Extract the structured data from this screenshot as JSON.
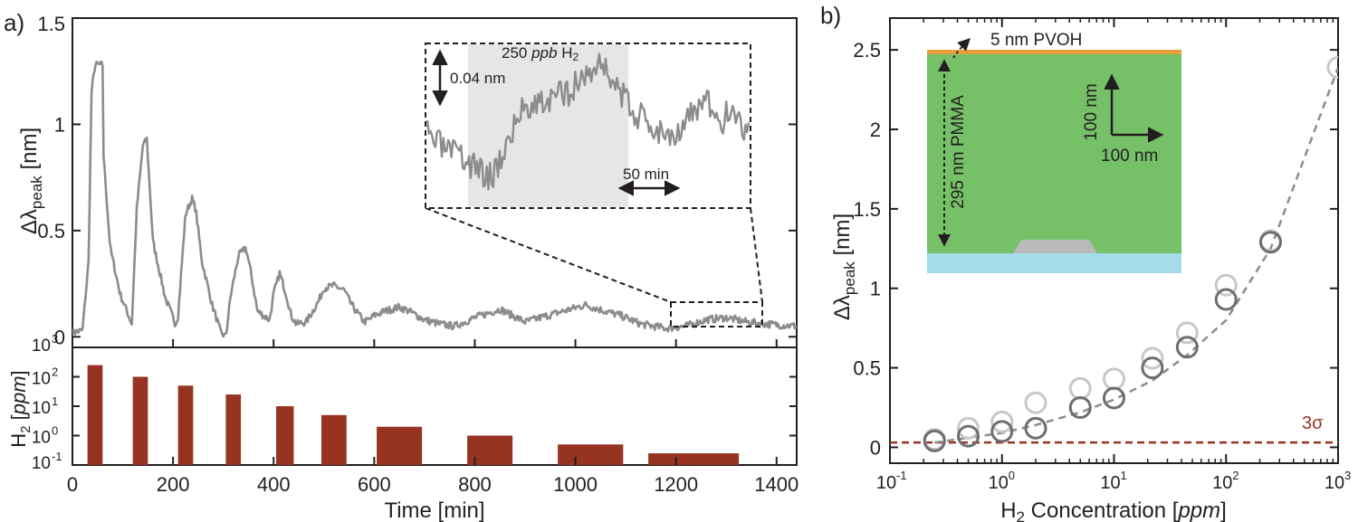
{
  "panel_a": {
    "label": "a)",
    "xlabel": "Time [min]",
    "ylabel_top": "Δλ",
    "ylabel_top_sub": "peak",
    "ylabel_top_unit": " [nm]",
    "ylabel_bottom": "H",
    "ylabel_bottom_sub": "2",
    "ylabel_bottom_unit": "ppm",
    "xticks": [
      0,
      200,
      400,
      600,
      800,
      1000,
      1200,
      1400
    ],
    "yticks_top": [
      {
        "value": 0,
        "label": "0"
      },
      {
        "value": 0.5,
        "label": "0.5"
      },
      {
        "value": 1,
        "label": "1"
      },
      {
        "value": 1.5,
        "label": "1.5"
      }
    ],
    "yticks_bottom": [
      {
        "base": "10",
        "exp": "-1"
      },
      {
        "base": "10",
        "exp": "0"
      },
      {
        "base": "10",
        "exp": "1"
      },
      {
        "base": "10",
        "exp": "2"
      },
      {
        "base": "10",
        "exp": "3"
      }
    ],
    "inset": {
      "annotation_prefix": "250 ",
      "annotation_unit": "ppb",
      "annotation_gas": " H",
      "annotation_gas_sub": "2",
      "scale_y": "0.04 nm",
      "scale_x": "50 min"
    },
    "colors": {
      "trace": "#8c8c8e",
      "bar": "#973421",
      "shade": "#e6e6e6"
    }
  },
  "panel_b": {
    "label": "b)",
    "xlabel_prefix": "H",
    "xlabel_sub": "2",
    "xlabel_mid": " Concentration [",
    "xlabel_unit": "ppm",
    "xlabel_end": "]",
    "ylabel": "Δλ",
    "ylabel_sub": "peak",
    "ylabel_unit": " [nm]",
    "yticks": [
      {
        "value": 0,
        "label": "0"
      },
      {
        "value": 0.5,
        "label": "0.5"
      },
      {
        "value": 1,
        "label": "1"
      },
      {
        "value": 1.5,
        "label": "1.5"
      },
      {
        "value": 2,
        "label": "2"
      },
      {
        "value": 2.5,
        "label": "2.5"
      }
    ],
    "xticks": [
      {
        "base": "10",
        "exp": "-1"
      },
      {
        "base": "10",
        "exp": "0"
      },
      {
        "base": "10",
        "exp": "1"
      },
      {
        "base": "10",
        "exp": "2"
      },
      {
        "base": "10",
        "exp": "3"
      }
    ],
    "threshold_label": "3σ",
    "inset": {
      "pvoh_label": "5 nm PVOH",
      "pmma_label": "295 nm PMMA",
      "scale_v": "100 nm",
      "scale_h": "100 nm"
    },
    "colors": {
      "dark": "#6d6e71",
      "light": "#c7c8ca",
      "threshold": "#973421",
      "pmma": "#76c168",
      "pvoh": "#e8a13a",
      "substrate": "#a5dcea",
      "particle": "#b9b9bb"
    }
  },
  "chart_data": [
    {
      "type": "line",
      "panel": "a-top",
      "xlim": [
        0,
        1440
      ],
      "ylim": [
        -0.05,
        1.5
      ],
      "series": [
        {
          "x": [
            0,
            20,
            32,
            38,
            45,
            60,
            62,
            75,
            95,
            115,
            118,
            128,
            140,
            148,
            160,
            185,
            205,
            210,
            225,
            238,
            245,
            258,
            278,
            295,
            305,
            315,
            330,
            345,
            355,
            368,
            392,
            400,
            412,
            425,
            435,
            445,
            465,
            490,
            500,
            520,
            540,
            555,
            580,
            590,
            600,
            620,
            650,
            670,
            700,
            730,
            760,
            800,
            850,
            900,
            960,
            1020,
            1060,
            1090,
            1130,
            1180,
            1220,
            1260,
            1300,
            1340,
            1380,
            1440
          ],
          "y": [
            0.02,
            0.03,
            0.35,
            1.15,
            1.28,
            1.28,
            0.85,
            0.42,
            0.2,
            0.08,
            0.06,
            0.6,
            0.9,
            0.93,
            0.45,
            0.18,
            0.06,
            0.1,
            0.58,
            0.65,
            0.6,
            0.35,
            0.15,
            0.02,
            0.0,
            0.2,
            0.38,
            0.42,
            0.3,
            0.12,
            0.08,
            0.2,
            0.3,
            0.2,
            0.1,
            0.06,
            0.07,
            0.17,
            0.23,
            0.24,
            0.22,
            0.15,
            0.07,
            0.08,
            0.1,
            0.12,
            0.14,
            0.12,
            0.08,
            0.06,
            0.05,
            0.09,
            0.13,
            0.07,
            0.11,
            0.15,
            0.12,
            0.1,
            0.06,
            0.04,
            0.05,
            0.08,
            0.09,
            0.07,
            0.06,
            0.05
          ]
        }
      ]
    },
    {
      "type": "bar",
      "panel": "a-bottom",
      "yscale": "log",
      "ylim": [
        0.1,
        1000
      ],
      "xlim": [
        0,
        1440
      ],
      "bars": [
        {
          "x_start": 30,
          "x_end": 60,
          "value": 250
        },
        {
          "x_start": 120,
          "x_end": 150,
          "value": 100
        },
        {
          "x_start": 210,
          "x_end": 240,
          "value": 50
        },
        {
          "x_start": 305,
          "x_end": 335,
          "value": 25
        },
        {
          "x_start": 405,
          "x_end": 440,
          "value": 10
        },
        {
          "x_start": 495,
          "x_end": 545,
          "value": 5
        },
        {
          "x_start": 605,
          "x_end": 695,
          "value": 2
        },
        {
          "x_start": 785,
          "x_end": 875,
          "value": 1
        },
        {
          "x_start": 965,
          "x_end": 1095,
          "value": 0.5
        },
        {
          "x_start": 1145,
          "x_end": 1325,
          "value": 0.25
        }
      ]
    },
    {
      "type": "scatter",
      "panel": "b",
      "xscale": "log",
      "xlim": [
        0.1,
        1000
      ],
      "ylim": [
        -0.1,
        2.7
      ],
      "series": [
        {
          "x": [
            0.25,
            0.5,
            1,
            2,
            5,
            10,
            22,
            45,
            100,
            250
          ],
          "y": [
            0.04,
            0.07,
            0.1,
            0.12,
            0.25,
            0.31,
            0.5,
            0.63,
            0.93,
            1.29
          ]
        },
        {
          "x": [
            0.25,
            0.5,
            1,
            2,
            5,
            10,
            22,
            45,
            100,
            250,
            1000
          ],
          "y": [
            0.05,
            0.12,
            0.16,
            0.28,
            0.37,
            0.43,
            0.56,
            0.72,
            1.02,
            1.3,
            2.39
          ]
        }
      ],
      "fit": {
        "x": [
          0.25,
          0.5,
          1,
          2,
          5,
          10,
          22,
          45,
          100,
          250,
          1000
        ],
        "y": [
          0.03,
          0.06,
          0.09,
          0.14,
          0.22,
          0.3,
          0.42,
          0.58,
          0.8,
          1.25,
          2.39
        ]
      },
      "threshold": 0.03
    }
  ]
}
